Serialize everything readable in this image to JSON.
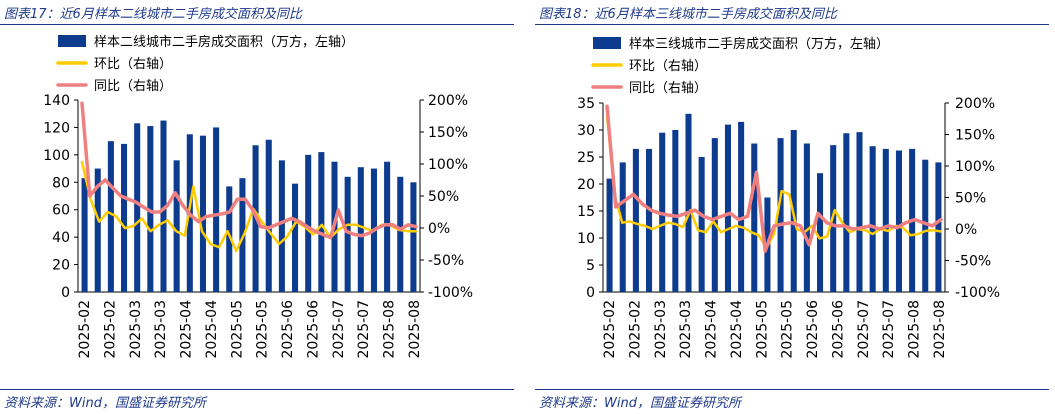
{
  "page": {
    "source_left": "资料来源：Wind，国盛证券研究所",
    "source_right": "资料来源：Wind，国盛证券研究所"
  },
  "chart_data": [
    {
      "type": "bar",
      "title": "图表17：近6月样本二线城市二手房成交面积及同比",
      "legend": [
        "样本二线城市二手房成交面积（万方，左轴）",
        "环比（右轴）",
        "同比（右轴）"
      ],
      "legend_placement": "top-left",
      "x_tick_labels": [
        "2025-02",
        "2025-02",
        "2025-03",
        "2025-03",
        "2025-04",
        "2025-04",
        "2025-05",
        "2025-05",
        "2025-06",
        "2025-06",
        "2025-07",
        "2025-07",
        "2025-08",
        "2025-08"
      ],
      "y_left": {
        "ylim": [
          0,
          140
        ],
        "ticks": [
          0,
          20,
          40,
          60,
          80,
          100,
          120,
          140
        ]
      },
      "y_right": {
        "ylim": [
          -100,
          200
        ],
        "ticks": [
          "-100%",
          "-50%",
          "0%",
          "50%",
          "100%",
          "150%",
          "200%"
        ]
      },
      "series": [
        {
          "name": "样本二线城市二手房成交面积（万方，左轴）",
          "kind": "bar",
          "axis": "left",
          "color": "#0d3b8e",
          "values": [
            83,
            90,
            110,
            108,
            123,
            121,
            125,
            96,
            115,
            114,
            120,
            77,
            83,
            107,
            111,
            96,
            79,
            100,
            102,
            95,
            84,
            91,
            90,
            95,
            84,
            80
          ]
        },
        {
          "name": "环比（右轴）",
          "kind": "line",
          "axis": "right",
          "color": "#ffcc00",
          "values": [
            103,
            45,
            10,
            25,
            18,
            0,
            3,
            15,
            -5,
            5,
            12,
            -5,
            -12,
            65,
            -5,
            -25,
            -30,
            -5,
            -36,
            -8,
            30,
            10,
            -8,
            -25,
            -13,
            10,
            2,
            -10,
            5,
            -15,
            -2,
            5,
            5,
            0,
            -5,
            5,
            4,
            -3,
            -5,
            -5
          ]
        },
        {
          "name": "同比（右轴）",
          "kind": "line",
          "axis": "right",
          "color": "#f08080",
          "values": [
            195,
            50,
            65,
            75,
            62,
            50,
            45,
            40,
            32,
            25,
            25,
            35,
            55,
            35,
            20,
            10,
            18,
            20,
            22,
            25,
            45,
            45,
            28,
            2,
            0,
            5,
            10,
            15,
            10,
            2,
            -5,
            -10,
            -15,
            28,
            -5,
            -10,
            -12,
            -8,
            0,
            5,
            5,
            -2,
            5,
            2
          ]
        }
      ]
    },
    {
      "type": "bar",
      "title": "图表18：近6月样本三线城市二手房成交面积及同比",
      "legend": [
        "样本三线城市二手房成交面积（万方，左轴）",
        "环比（右轴）",
        "同比（右轴）"
      ],
      "legend_placement": "top-left",
      "x_tick_labels": [
        "2025-02",
        "2025-02",
        "2025-03",
        "2025-03",
        "2025-04",
        "2025-04",
        "2025-05",
        "2025-05",
        "2025-06",
        "2025-06",
        "2025-07",
        "2025-07",
        "2025-08",
        "2025-08"
      ],
      "y_left": {
        "ylim": [
          0,
          35
        ],
        "ticks": [
          0,
          5,
          10,
          15,
          20,
          25,
          30,
          35
        ]
      },
      "y_right": {
        "ylim": [
          -100,
          200
        ],
        "ticks": [
          "-100%",
          "-50%",
          "0%",
          "50%",
          "100%",
          "150%",
          "200%"
        ]
      },
      "series": [
        {
          "name": "样本三线城市二手房成交面积（万方，左轴）",
          "kind": "bar",
          "axis": "left",
          "color": "#0d3b8e",
          "values": [
            21,
            24,
            26.5,
            26.5,
            29.5,
            30,
            33,
            25,
            28.5,
            31,
            31.5,
            27.5,
            17.5,
            28.5,
            30,
            27.5,
            22,
            27.2,
            29.4,
            29.6,
            27,
            26.5,
            26.2,
            26.5,
            24.5,
            24
          ]
        },
        {
          "name": "环比（右轴）",
          "kind": "line",
          "axis": "right",
          "color": "#ffcc00",
          "values": [
            180,
            55,
            10,
            12,
            8,
            5,
            0,
            5,
            10,
            8,
            3,
            30,
            -2,
            -5,
            12,
            -5,
            0,
            5,
            2,
            -5,
            -10,
            -30,
            -8,
            60,
            55,
            0,
            -5,
            5,
            -15,
            -12,
            30,
            10,
            -5,
            0,
            -2,
            -8,
            0,
            -3,
            5,
            2,
            -10,
            -8,
            -3,
            -2,
            -4
          ]
        },
        {
          "name": "同比（右轴）",
          "kind": "line",
          "axis": "right",
          "color": "#f08080",
          "values": [
            195,
            35,
            45,
            55,
            40,
            30,
            25,
            22,
            20,
            25,
            30,
            20,
            15,
            20,
            25,
            15,
            20,
            90,
            -35,
            5,
            8,
            10,
            5,
            -25,
            25,
            10,
            5,
            5,
            0,
            2,
            5,
            0,
            5,
            2,
            10,
            15,
            10,
            5,
            15
          ]
        }
      ]
    }
  ]
}
